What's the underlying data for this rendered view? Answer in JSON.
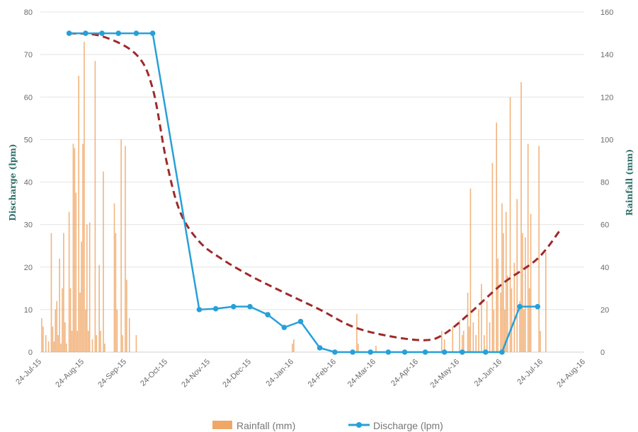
{
  "chart_data": {
    "type": "line",
    "title": "",
    "y_left": {
      "label": "Discharge (lpm)",
      "range": [
        0,
        80
      ],
      "ticks": [
        0,
        10,
        20,
        30,
        40,
        50,
        60,
        70,
        80
      ]
    },
    "y_right": {
      "label": "Rainfall (mm)",
      "range": [
        0,
        160
      ],
      "ticks": [
        0,
        20,
        40,
        60,
        80,
        100,
        120,
        140,
        160
      ]
    },
    "x_axis": {
      "type": "date",
      "range": [
        "2015-07-24",
        "2016-08-24"
      ],
      "ticks": [
        {
          "date": "2015-07-24",
          "label": "24-Jul-15"
        },
        {
          "date": "2015-08-24",
          "label": "24-Aug-15"
        },
        {
          "date": "2015-09-24",
          "label": "24-Sep-15"
        },
        {
          "date": "2015-10-24",
          "label": "24-Oct-15"
        },
        {
          "date": "2015-11-24",
          "label": "24-Nov-15"
        },
        {
          "date": "2015-12-24",
          "label": "24-Dec-15"
        },
        {
          "date": "2016-01-24",
          "label": "24-Jan-16"
        },
        {
          "date": "2016-02-24",
          "label": "24-Feb-16"
        },
        {
          "date": "2016-03-24",
          "label": "24-Mar-16"
        },
        {
          "date": "2016-04-24",
          "label": "24-Apr-16"
        },
        {
          "date": "2016-05-24",
          "label": "24-May-16"
        },
        {
          "date": "2016-06-24",
          "label": "24-Jun-16"
        },
        {
          "date": "2016-07-24",
          "label": "24-Jul-16"
        },
        {
          "date": "2016-08-24",
          "label": "24-Aug-16"
        }
      ]
    },
    "grid": true,
    "legend": {
      "position": "bottom"
    },
    "series": [
      {
        "name": "Rainfall (mm)",
        "type": "bar",
        "axis": "right",
        "color": "#f0a766",
        "points": [
          [
            "2015-07-25",
            16
          ],
          [
            "2015-07-26",
            12
          ],
          [
            "2015-07-28",
            8
          ],
          [
            "2015-07-30",
            5
          ],
          [
            "2015-08-01",
            56
          ],
          [
            "2015-08-02",
            12
          ],
          [
            "2015-08-03",
            5
          ],
          [
            "2015-08-04",
            20
          ],
          [
            "2015-08-05",
            24
          ],
          [
            "2015-08-06",
            8
          ],
          [
            "2015-08-07",
            44
          ],
          [
            "2015-08-08",
            4
          ],
          [
            "2015-08-09",
            30
          ],
          [
            "2015-08-10",
            56
          ],
          [
            "2015-08-11",
            14
          ],
          [
            "2015-08-12",
            4
          ],
          [
            "2015-08-14",
            66
          ],
          [
            "2015-08-15",
            30
          ],
          [
            "2015-08-16",
            10
          ],
          [
            "2015-08-17",
            98
          ],
          [
            "2015-08-18",
            96
          ],
          [
            "2015-08-19",
            75
          ],
          [
            "2015-08-20",
            10
          ],
          [
            "2015-08-21",
            130
          ],
          [
            "2015-08-22",
            28
          ],
          [
            "2015-08-23",
            52
          ],
          [
            "2015-08-24",
            98
          ],
          [
            "2015-08-25",
            146
          ],
          [
            "2015-08-26",
            20
          ],
          [
            "2015-08-27",
            60
          ],
          [
            "2015-08-28",
            10
          ],
          [
            "2015-08-29",
            61
          ],
          [
            "2015-08-31",
            6
          ],
          [
            "2015-09-02",
            137
          ],
          [
            "2015-09-03",
            8
          ],
          [
            "2015-09-05",
            41
          ],
          [
            "2015-09-06",
            10
          ],
          [
            "2015-09-08",
            85
          ],
          [
            "2015-09-09",
            4
          ],
          [
            "2015-09-16",
            70
          ],
          [
            "2015-09-17",
            56
          ],
          [
            "2015-09-18",
            20
          ],
          [
            "2015-09-21",
            100
          ],
          [
            "2015-09-22",
            8
          ],
          [
            "2015-09-24",
            97
          ],
          [
            "2015-09-25",
            34
          ],
          [
            "2015-09-27",
            16
          ],
          [
            "2015-10-02",
            8
          ],
          [
            "2016-01-24",
            4
          ],
          [
            "2016-01-25",
            6
          ],
          [
            "2016-03-11",
            18
          ],
          [
            "2016-03-12",
            4
          ],
          [
            "2016-03-25",
            3
          ],
          [
            "2016-05-12",
            10
          ],
          [
            "2016-05-14",
            6
          ],
          [
            "2016-05-20",
            12
          ],
          [
            "2016-05-25",
            15
          ],
          [
            "2016-05-27",
            8
          ],
          [
            "2016-05-28",
            10
          ],
          [
            "2016-05-31",
            28
          ],
          [
            "2016-06-01",
            12
          ],
          [
            "2016-06-02",
            77
          ],
          [
            "2016-06-04",
            14
          ],
          [
            "2016-06-06",
            8
          ],
          [
            "2016-06-08",
            20
          ],
          [
            "2016-06-10",
            32
          ],
          [
            "2016-06-12",
            8
          ],
          [
            "2016-06-14",
            24
          ],
          [
            "2016-06-16",
            14
          ],
          [
            "2016-06-18",
            89
          ],
          [
            "2016-06-19",
            20
          ],
          [
            "2016-06-21",
            108
          ],
          [
            "2016-06-22",
            44
          ],
          [
            "2016-06-24",
            28
          ],
          [
            "2016-06-25",
            70
          ],
          [
            "2016-06-26",
            56
          ],
          [
            "2016-06-27",
            20
          ],
          [
            "2016-06-28",
            66
          ],
          [
            "2016-06-29",
            36
          ],
          [
            "2016-07-01",
            120
          ],
          [
            "2016-07-02",
            30
          ],
          [
            "2016-07-04",
            42
          ],
          [
            "2016-07-06",
            72
          ],
          [
            "2016-07-08",
            24
          ],
          [
            "2016-07-09",
            127
          ],
          [
            "2016-07-10",
            56
          ],
          [
            "2016-07-11",
            20
          ],
          [
            "2016-07-12",
            54
          ],
          [
            "2016-07-14",
            98
          ],
          [
            "2016-07-15",
            30
          ],
          [
            "2016-07-16",
            65
          ],
          [
            "2016-07-22",
            97
          ],
          [
            "2016-07-23",
            10
          ],
          [
            "2016-07-27",
            47
          ]
        ]
      },
      {
        "name": "Discharge (lpm)",
        "type": "line",
        "axis": "left",
        "color": "#27a0d8",
        "points": [
          [
            "2015-08-14",
            75
          ],
          [
            "2015-08-26",
            75
          ],
          [
            "2015-09-07",
            75
          ],
          [
            "2015-09-19",
            75
          ],
          [
            "2015-10-02",
            75
          ],
          [
            "2015-10-14",
            75
          ],
          [
            "2015-11-17",
            10
          ],
          [
            "2015-11-29",
            10.2
          ],
          [
            "2015-12-12",
            10.7
          ],
          [
            "2015-12-24",
            10.7
          ],
          [
            "2016-01-06",
            8.8
          ],
          [
            "2016-01-18",
            5.8
          ],
          [
            "2016-01-30",
            7.2
          ],
          [
            "2016-02-13",
            1
          ],
          [
            "2016-02-24",
            0
          ],
          [
            "2016-03-08",
            0
          ],
          [
            "2016-03-21",
            0
          ],
          [
            "2016-04-03",
            0
          ],
          [
            "2016-04-15",
            0
          ],
          [
            "2016-04-30",
            0
          ],
          [
            "2016-05-14",
            0
          ],
          [
            "2016-05-27",
            0
          ],
          [
            "2016-06-13",
            0
          ],
          [
            "2016-06-25",
            0
          ],
          [
            "2016-07-08",
            10.7
          ],
          [
            "2016-07-21",
            10.7
          ]
        ]
      },
      {
        "type": "line",
        "style": "dashed",
        "axis": "left",
        "color": "#9e2a2b",
        "points": [
          [
            "2015-08-14",
            75
          ],
          [
            "2015-09-07",
            74.3
          ],
          [
            "2015-10-02",
            70
          ],
          [
            "2015-10-14",
            62
          ],
          [
            "2015-10-24",
            45
          ],
          [
            "2015-11-03",
            33
          ],
          [
            "2015-11-17",
            26
          ],
          [
            "2015-12-03",
            22
          ],
          [
            "2015-12-24",
            18
          ],
          [
            "2016-01-18",
            14
          ],
          [
            "2016-02-13",
            10
          ],
          [
            "2016-03-08",
            6
          ],
          [
            "2016-04-03",
            3.8
          ],
          [
            "2016-04-30",
            2.8
          ],
          [
            "2016-05-14",
            4.3
          ],
          [
            "2016-06-01",
            9
          ],
          [
            "2016-06-25",
            16
          ],
          [
            "2016-07-21",
            22
          ],
          [
            "2016-08-06",
            28.5
          ]
        ]
      }
    ]
  },
  "legend": {
    "rainfall_label": "Rainfall (mm)",
    "discharge_label": "Discharge (lpm)"
  }
}
